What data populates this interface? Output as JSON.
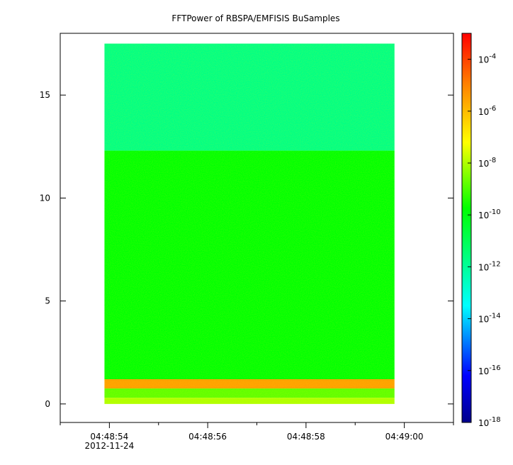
{
  "chart_data": {
    "type": "heatmap",
    "title": "FFTPower of RBSPA/EMFISIS  BuSamples",
    "xlabel": "",
    "ylabel": "",
    "x_range": [
      "04:48:53.0",
      "04:49:01.0"
    ],
    "x_data_extent": [
      "04:48:53.9",
      "04:48:59.8"
    ],
    "x_ticks": [
      {
        "label": "04:48:54",
        "sublabel": "2012-11-24",
        "t": 54
      },
      {
        "label": "04:48:56",
        "sublabel": "",
        "t": 56
      },
      {
        "label": "04:48:58",
        "sublabel": "",
        "t": 58
      },
      {
        "label": "04:49:00",
        "sublabel": "",
        "t": 60
      }
    ],
    "x_minor_ticks": [
      53,
      55,
      57,
      59,
      61
    ],
    "ylim": [
      -0.9,
      18.0
    ],
    "y_data_extent": [
      0,
      17.5
    ],
    "y_ticks": [
      0,
      5,
      10,
      15
    ],
    "colorbar": {
      "scale": "log",
      "range": [
        1e-18,
        0.001
      ],
      "ticks": [
        {
          "base": "10",
          "exp": "-4",
          "value": 0.0001
        },
        {
          "base": "10",
          "exp": "-6",
          "value": 1e-06
        },
        {
          "base": "10",
          "exp": "-8",
          "value": 1e-08
        },
        {
          "base": "10",
          "exp": "-10",
          "value": 1e-10
        },
        {
          "base": "10",
          "exp": "-12",
          "value": 1e-12
        },
        {
          "base": "10",
          "exp": "-14",
          "value": 1e-14
        },
        {
          "base": "10",
          "exp": "-16",
          "value": 1e-16
        },
        {
          "base": "10",
          "exp": "-18",
          "value": 1e-18
        }
      ]
    },
    "bands": [
      {
        "y": [
          12.3,
          17.5
        ],
        "log_power": -11.7
      },
      {
        "y": [
          1.2,
          12.3
        ],
        "log_power": -9.8
      },
      {
        "y": [
          0.75,
          1.2
        ],
        "log_power": -5.5
      },
      {
        "y": [
          0.3,
          0.75
        ],
        "log_power": -8.8
      },
      {
        "y": [
          0.0,
          0.3
        ],
        "log_power": -8.0
      }
    ],
    "grid": false,
    "legend": "colorbar-right"
  }
}
